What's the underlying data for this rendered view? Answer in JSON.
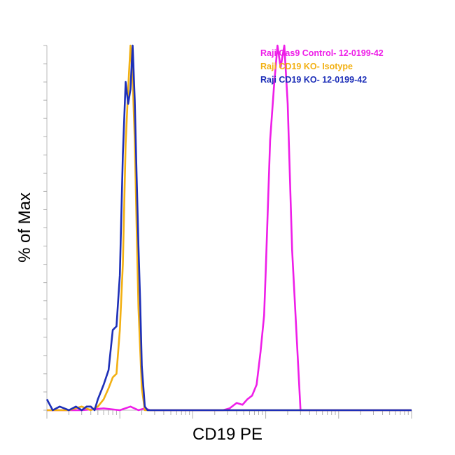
{
  "chart_data": {
    "type": "line",
    "title": "",
    "xlabel": "CD19 PE",
    "ylabel": "% of Max",
    "x_scale": "log",
    "xlim": [
      1,
      100000
    ],
    "ylim": [
      0,
      100
    ],
    "grid": false,
    "tick_labels_shown": false,
    "legend_position": "top-right",
    "series": [
      {
        "name": "Raji Cas9 Control- 12-0199-42",
        "color": "#ee1ee8",
        "x": [
          1,
          3,
          6,
          10,
          14,
          18,
          22,
          26,
          30,
          36,
          44,
          55,
          65,
          80,
          100,
          130,
          160,
          200,
          260,
          320,
          400,
          480,
          560,
          650,
          750,
          850,
          950,
          1000,
          1080,
          1150,
          1300,
          1450,
          1600,
          1800,
          2000,
          2300,
          3000,
          10000,
          100000
        ],
        "values": [
          0,
          0,
          0.5,
          0,
          1,
          0,
          0.5,
          0,
          0,
          0,
          0,
          0,
          0,
          0,
          0,
          0,
          0,
          0,
          0,
          0.5,
          2,
          1.5,
          3,
          4,
          7,
          16,
          26,
          38,
          58,
          74,
          89,
          100,
          94,
          100,
          84,
          44,
          0,
          0,
          0
        ]
      },
      {
        "name": "Raji CD19 KO- Isotype",
        "color": "#f2b012",
        "x": [
          1,
          2,
          3,
          4,
          5,
          6,
          7,
          8,
          9,
          10,
          11,
          12,
          13,
          14,
          15,
          16,
          17,
          18,
          20,
          22,
          25,
          28,
          32,
          40,
          100000
        ],
        "values": [
          0,
          0,
          1,
          0,
          1,
          3,
          6,
          9,
          10,
          22,
          40,
          73,
          88,
          100,
          91,
          74,
          50,
          28,
          6,
          0,
          0,
          0,
          0,
          0,
          0
        ]
      },
      {
        "name": "Raji CD19 KO- 12-0199-42",
        "color": "#1d2fb8",
        "x": [
          1,
          1.2,
          1.5,
          2,
          2.5,
          3,
          3.5,
          4,
          4.5,
          5,
          6,
          7,
          8,
          9,
          10,
          11,
          12,
          13,
          14,
          15,
          16,
          17,
          18,
          19,
          20,
          22,
          24,
          26,
          30,
          100000
        ],
        "values": [
          3,
          0,
          1,
          0,
          1,
          0,
          1,
          1,
          0,
          3,
          7,
          11,
          22,
          23,
          37,
          70,
          90,
          84,
          88,
          100,
          85,
          64,
          45,
          30,
          12,
          1,
          0,
          0,
          0,
          0
        ]
      }
    ]
  }
}
